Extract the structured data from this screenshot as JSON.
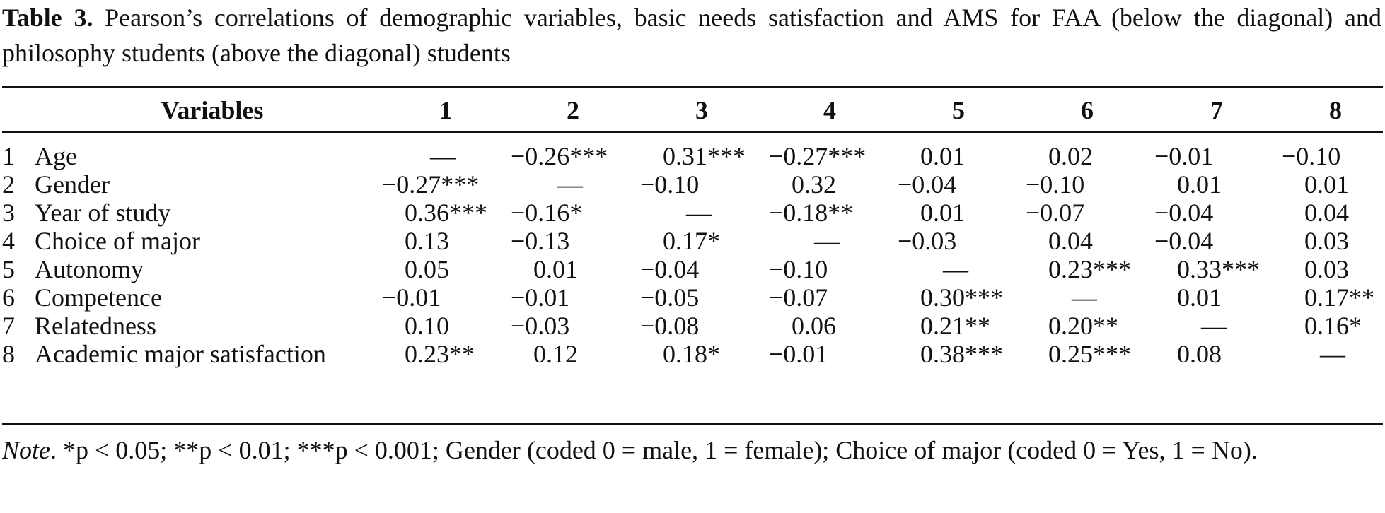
{
  "caption": {
    "label": "Table 3.",
    "text": " Pearson’s correlations of demographic variables, basic needs satisfaction and AMS for FAA (below the diagonal) and philosophy students (above the diagonal) students"
  },
  "table": {
    "header": {
      "variables": "Variables",
      "columns": [
        "1",
        "2",
        "3",
        "4",
        "5",
        "6",
        "7",
        "8"
      ]
    },
    "rows": [
      {
        "num": "1",
        "label": "Age",
        "cells": [
          "—",
          "−0.26***",
          "0.31***",
          "−0.27***",
          "0.01",
          "0.02",
          "−0.01",
          "−0.10"
        ]
      },
      {
        "num": "2",
        "label": "Gender",
        "cells": [
          "−0.27***",
          "—",
          "−0.10",
          "0.32",
          "−0.04",
          "−0.10",
          "0.01",
          "0.01"
        ]
      },
      {
        "num": "3",
        "label": "Year of study",
        "cells": [
          "0.36***",
          "−0.16*",
          "—",
          "−0.18**",
          "0.01",
          "−0.07",
          "−0.04",
          "0.04"
        ]
      },
      {
        "num": "4",
        "label": "Choice of major",
        "cells": [
          "0.13",
          "−0.13",
          "0.17*",
          "—",
          "−0.03",
          "0.04",
          "−0.04",
          "0.03"
        ]
      },
      {
        "num": "5",
        "label": "Autonomy",
        "cells": [
          "0.05",
          "0.01",
          "−0.04",
          "−0.10",
          "—",
          "0.23***",
          "0.33***",
          "0.03"
        ]
      },
      {
        "num": "6",
        "label": "Competence",
        "cells": [
          "−0.01",
          "−0.01",
          "−0.05",
          "−0.07",
          "0.30***",
          "—",
          "0.01",
          "0.17**"
        ]
      },
      {
        "num": "7",
        "label": "Relatedness",
        "cells": [
          "0.10",
          "−0.03",
          "−0.08",
          "0.06",
          "0.21**",
          "0.20**",
          "—",
          "0.16*"
        ]
      },
      {
        "num": "8",
        "label": "Academic major satisfaction",
        "cells": [
          "0.23**",
          "0.12",
          "0.18*",
          "−0.01",
          "0.38***",
          "0.25***",
          "0.08",
          "—"
        ]
      }
    ]
  },
  "note": {
    "label": "Note",
    "text": ". *p < 0.05; **p < 0.01; ***p < 0.001; Gender (coded 0 = male, 1 = female); Choice of major (coded 0 = Yes, 1 = No)."
  }
}
